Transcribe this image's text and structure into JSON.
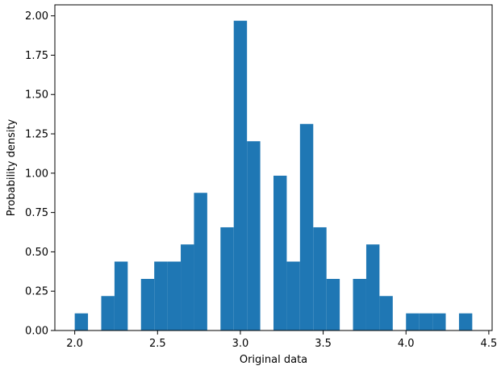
{
  "chart_data": {
    "type": "histogram",
    "title": "",
    "xlabel": "Original data",
    "ylabel": "Probability density",
    "xlim": [
      1.88,
      4.52
    ],
    "ylim": [
      0,
      2.07
    ],
    "grid": false,
    "legend": "none",
    "bar_color": "#1f77b4",
    "bin_width": 0.08,
    "xticks": [
      {
        "value": 2.0,
        "label": "2.0"
      },
      {
        "value": 2.5,
        "label": "2.5"
      },
      {
        "value": 3.0,
        "label": "3.0"
      },
      {
        "value": 3.5,
        "label": "3.5"
      },
      {
        "value": 4.0,
        "label": "4.0"
      },
      {
        "value": 4.5,
        "label": "4.5"
      }
    ],
    "yticks": [
      {
        "value": 0.0,
        "label": "0.00"
      },
      {
        "value": 0.25,
        "label": "0.25"
      },
      {
        "value": 0.5,
        "label": "0.50"
      },
      {
        "value": 0.75,
        "label": "0.75"
      },
      {
        "value": 1.0,
        "label": "1.00"
      },
      {
        "value": 1.25,
        "label": "1.25"
      },
      {
        "value": 1.5,
        "label": "1.50"
      },
      {
        "value": 1.75,
        "label": "1.75"
      },
      {
        "value": 2.0,
        "label": "2.00"
      }
    ],
    "bins": [
      {
        "start": 2.0,
        "value": 0.109
      },
      {
        "start": 2.08,
        "value": 0.0
      },
      {
        "start": 2.16,
        "value": 0.219
      },
      {
        "start": 2.24,
        "value": 0.438
      },
      {
        "start": 2.32,
        "value": 0.0
      },
      {
        "start": 2.4,
        "value": 0.328
      },
      {
        "start": 2.48,
        "value": 0.438
      },
      {
        "start": 2.56,
        "value": 0.438
      },
      {
        "start": 2.64,
        "value": 0.547
      },
      {
        "start": 2.72,
        "value": 0.875
      },
      {
        "start": 2.8,
        "value": 0.0
      },
      {
        "start": 2.88,
        "value": 0.656
      },
      {
        "start": 2.96,
        "value": 1.969
      },
      {
        "start": 3.04,
        "value": 1.203
      },
      {
        "start": 3.12,
        "value": 0.0
      },
      {
        "start": 3.2,
        "value": 0.984
      },
      {
        "start": 3.28,
        "value": 0.438
      },
      {
        "start": 3.36,
        "value": 1.313
      },
      {
        "start": 3.44,
        "value": 0.656
      },
      {
        "start": 3.52,
        "value": 0.328
      },
      {
        "start": 3.6,
        "value": 0.0
      },
      {
        "start": 3.68,
        "value": 0.328
      },
      {
        "start": 3.76,
        "value": 0.547
      },
      {
        "start": 3.84,
        "value": 0.219
      },
      {
        "start": 3.92,
        "value": 0.0
      },
      {
        "start": 4.0,
        "value": 0.109
      },
      {
        "start": 4.08,
        "value": 0.109
      },
      {
        "start": 4.16,
        "value": 0.109
      },
      {
        "start": 4.24,
        "value": 0.0
      },
      {
        "start": 4.32,
        "value": 0.109
      }
    ]
  }
}
